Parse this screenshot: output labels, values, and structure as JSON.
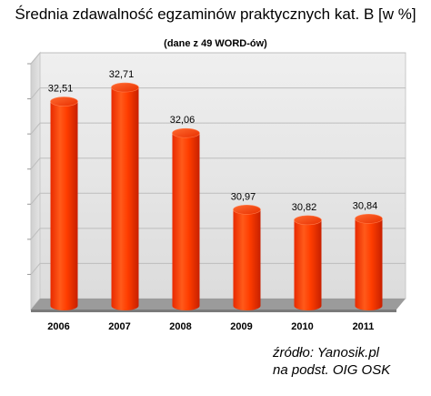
{
  "chart_data": {
    "type": "bar",
    "title": "Średnia zdawalność egzaminów praktycznych kat. B [w %]",
    "subtitle": "(dane z 49 WORD-ów)",
    "categories": [
      "2006",
      "2007",
      "2008",
      "2009",
      "2010",
      "2011"
    ],
    "values": [
      32.51,
      32.71,
      32.06,
      30.97,
      30.82,
      30.84
    ],
    "value_labels": [
      "32,51",
      "32,71",
      "32,06",
      "30,97",
      "30,82",
      "30,84"
    ],
    "xlabel": "",
    "ylabel": "",
    "ylim": [
      29.6,
      33.1
    ],
    "grid": true,
    "legend": "none",
    "bar_color": "#ff3300",
    "bar_shape": "3d-cylinder"
  },
  "source": {
    "line1": "źródło: Yanosik.pl",
    "line2": "na podst. OIG OSK"
  }
}
